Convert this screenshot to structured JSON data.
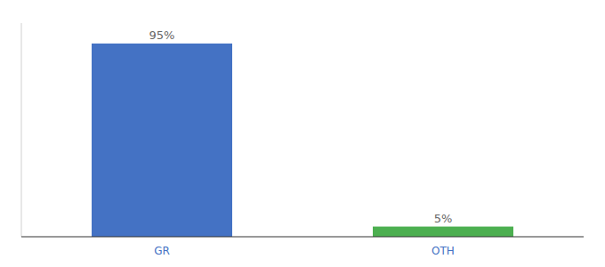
{
  "chart_data": {
    "type": "bar",
    "categories": [
      "GR",
      "OTH"
    ],
    "values": [
      95,
      5
    ],
    "value_labels": [
      "95%",
      "5%"
    ],
    "colors": [
      "#4472c4",
      "#4caf50"
    ],
    "ylim": [
      0,
      105
    ],
    "data_labels": true,
    "tick_labels": "x"
  }
}
